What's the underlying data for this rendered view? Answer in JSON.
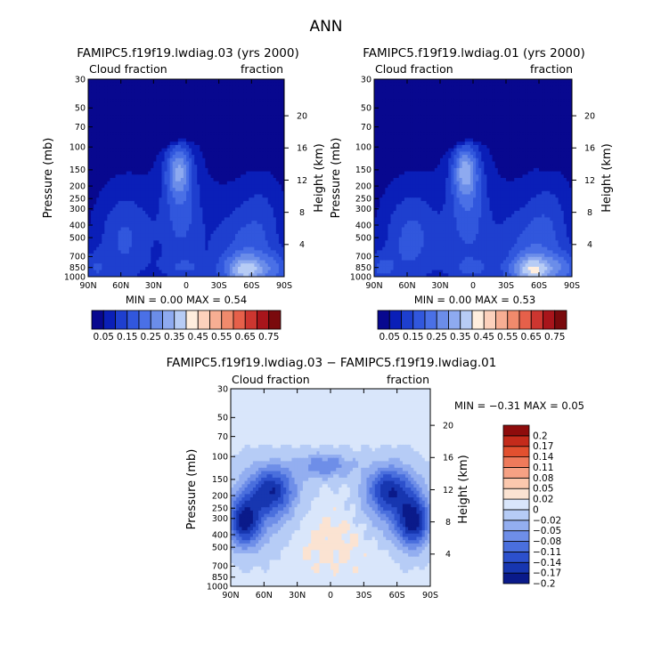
{
  "figure_title": "ANN",
  "palette": {
    "abs": [
      "#08088f",
      "#0a1fb8",
      "#1e3fcf",
      "#3157dd",
      "#4a70e6",
      "#6b8de9",
      "#8eaaf0",
      "#b7ccf5",
      "#ffeede",
      "#fcd1bc",
      "#f7ae93",
      "#f08a6c",
      "#e6604a",
      "#cd3630",
      "#a8151b",
      "#7a0a0d"
    ],
    "diff": [
      "#0a1a8a",
      "#1736b0",
      "#2c50cc",
      "#4a6fdd",
      "#6e8ee8",
      "#93aef0",
      "#b6ccf6",
      "#d9e6fb",
      "#fbe3d2",
      "#fbc8ae",
      "#f6a184",
      "#ee7a5b",
      "#e2502f",
      "#c42b1b",
      "#8e0c0c"
    ]
  },
  "chart_data": [
    {
      "id": "panel-03",
      "type": "heatmap",
      "title": "FAMIPC5.f19f19.lwdiag.03 (yrs 2000)",
      "left_label": "Cloud fraction",
      "right_label": "fraction",
      "ylabel": "Pressure (mb)",
      "y2label": "Height (km)",
      "x_ticks": [
        "90N",
        "60N",
        "30N",
        "0",
        "30S",
        "60S",
        "90S"
      ],
      "xlim": [
        90,
        -90
      ],
      "p_ticks": [
        "30",
        "50",
        "70",
        "100",
        "150",
        "200",
        "250",
        "300",
        "400",
        "500",
        "700",
        "850",
        "1000"
      ],
      "p_values": [
        30,
        50,
        70,
        100,
        150,
        200,
        250,
        300,
        400,
        500,
        700,
        850,
        1000
      ],
      "ylim_mb": [
        1000,
        30
      ],
      "h_ticks": [
        "20",
        "16",
        "12",
        "8",
        "4"
      ],
      "h_values": [
        20,
        16,
        12,
        8,
        4
      ],
      "stats": "MIN =    0.00   MAX =   0.54",
      "levels": [
        "0.05",
        "0.15",
        "0.25",
        "0.35",
        "0.45",
        "0.55",
        "0.65",
        "0.75"
      ],
      "level_values": [
        0.05,
        0.1,
        0.15,
        0.2,
        0.25,
        0.3,
        0.35,
        0.4,
        0.45,
        0.5,
        0.55,
        0.6,
        0.65,
        0.7,
        0.75
      ],
      "scale": 1.0
    },
    {
      "id": "panel-01",
      "type": "heatmap",
      "title": "FAMIPC5.f19f19.lwdiag.01 (yrs 2000)",
      "left_label": "Cloud fraction",
      "right_label": "fraction",
      "ylabel": "Pressure (mb)",
      "y2label": "Height (km)",
      "x_ticks": [
        "90N",
        "60N",
        "30N",
        "0",
        "30S",
        "60S",
        "90S"
      ],
      "xlim": [
        90,
        -90
      ],
      "p_ticks": [
        "30",
        "50",
        "70",
        "100",
        "150",
        "200",
        "250",
        "300",
        "400",
        "500",
        "700",
        "850",
        "1000"
      ],
      "p_values": [
        30,
        50,
        70,
        100,
        150,
        200,
        250,
        300,
        400,
        500,
        700,
        850,
        1000
      ],
      "ylim_mb": [
        1000,
        30
      ],
      "h_ticks": [
        "20",
        "16",
        "12",
        "8",
        "4"
      ],
      "h_values": [
        20,
        16,
        12,
        8,
        4
      ],
      "stats": "MIN =    0.00   MAX =   0.53",
      "levels": [
        "0.05",
        "0.15",
        "0.25",
        "0.35",
        "0.45",
        "0.55",
        "0.65",
        "0.75"
      ],
      "level_values": [
        0.05,
        0.1,
        0.15,
        0.2,
        0.25,
        0.3,
        0.35,
        0.4,
        0.45,
        0.5,
        0.55,
        0.6,
        0.65,
        0.7,
        0.75
      ],
      "scale": 1.07
    },
    {
      "id": "panel-diff",
      "type": "heatmap",
      "title": "FAMIPC5.f19f19.lwdiag.03 − FAMIPC5.f19f19.lwdiag.01",
      "left_label": "Cloud fraction",
      "right_label": "fraction",
      "ylabel": "Pressure (mb)",
      "y2label": "Height (km)",
      "x_ticks": [
        "90N",
        "60N",
        "30N",
        "0",
        "30S",
        "60S",
        "90S"
      ],
      "xlim": [
        90,
        -90
      ],
      "p_ticks": [
        "30",
        "50",
        "70",
        "100",
        "150",
        "200",
        "250",
        "300",
        "400",
        "500",
        "700",
        "850",
        "1000"
      ],
      "p_values": [
        30,
        50,
        70,
        100,
        150,
        200,
        250,
        300,
        400,
        500,
        700,
        850,
        1000
      ],
      "ylim_mb": [
        1000,
        30
      ],
      "h_ticks": [
        "20",
        "16",
        "12",
        "8",
        "4"
      ],
      "h_values": [
        20,
        16,
        12,
        8,
        4
      ],
      "stats": "MIN =   −0.31   MAX =    0.05",
      "levels": [
        "0.2",
        "0.17",
        "0.14",
        "0.11",
        "0.08",
        "0.05",
        "0.02",
        "0",
        "−0.02",
        "−0.05",
        "−0.08",
        "−0.11",
        "−0.14",
        "−0.17",
        "−0.2"
      ],
      "level_values": [
        -0.2,
        -0.17,
        -0.14,
        -0.11,
        -0.08,
        -0.05,
        -0.02,
        0,
        0.02,
        0.05,
        0.08,
        0.11,
        0.14,
        0.17,
        0.2
      ]
    }
  ]
}
